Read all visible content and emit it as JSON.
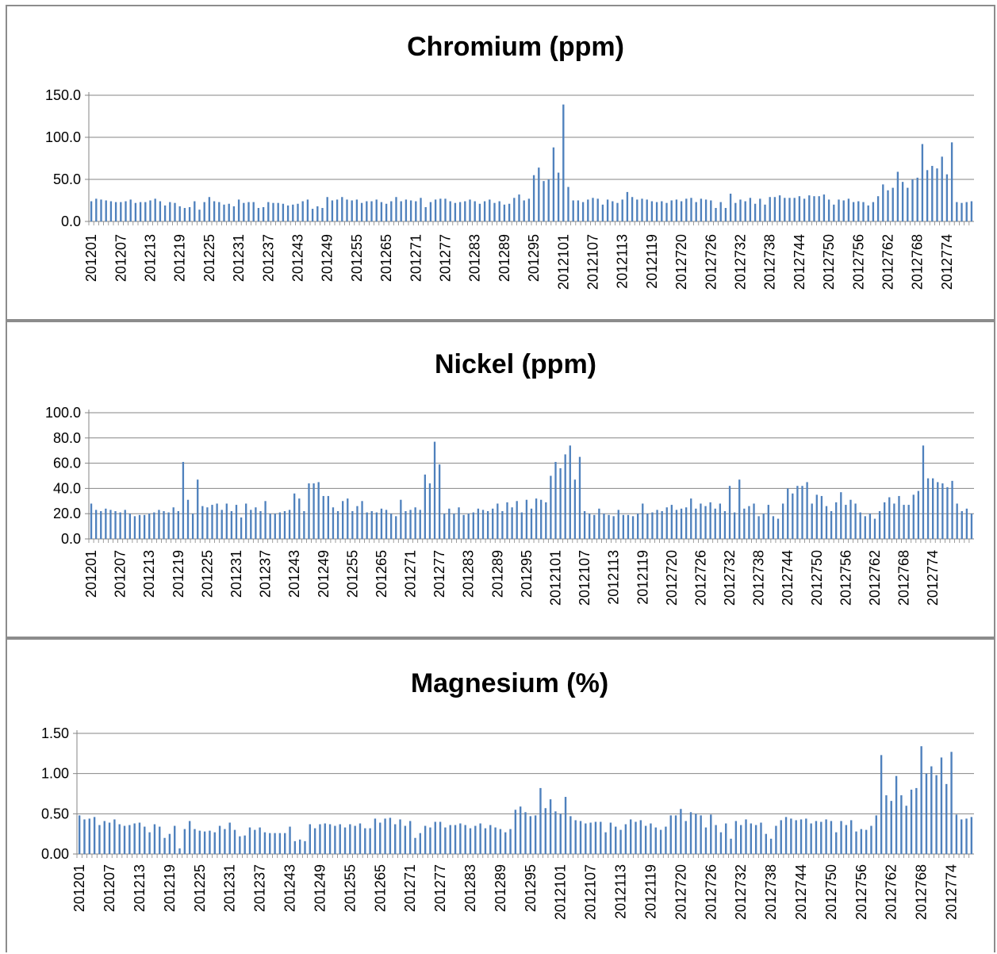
{
  "colors": {
    "bar": "#4f81bd",
    "grid": "#868686",
    "axis": "#868686",
    "border": "#8c8c8c"
  },
  "chart_data": [
    {
      "type": "bar",
      "title": "Chromium (ppm)",
      "ylim": [
        0,
        150
      ],
      "yticks": [
        "0.0",
        "50.0",
        "100.0",
        "150.0"
      ],
      "grid": true,
      "xlabels_shown": [
        "201201",
        "201207",
        "201213",
        "201219",
        "201225",
        "201231",
        "201237",
        "201243",
        "201249",
        "201255",
        "201265",
        "201271",
        "201277",
        "201283",
        "201289",
        "201295",
        "2012101",
        "2012107",
        "2012113",
        "2012119",
        "2012720",
        "2012726",
        "2012732",
        "2012738",
        "2012744",
        "2012750",
        "2012756",
        "2012762",
        "2012768",
        "2012774"
      ],
      "values": [
        24,
        27,
        26,
        25,
        24,
        23,
        23,
        24,
        26,
        22,
        23,
        23,
        25,
        27,
        24,
        19,
        23,
        22,
        18,
        16,
        17,
        24,
        14,
        23,
        29,
        24,
        23,
        20,
        21,
        18,
        26,
        22,
        23,
        23,
        16,
        17,
        23,
        22,
        22,
        21,
        19,
        20,
        21,
        24,
        26,
        15,
        18,
        16,
        29,
        25,
        26,
        29,
        26,
        25,
        26,
        22,
        24,
        24,
        26,
        23,
        21,
        24,
        29,
        24,
        26,
        25,
        24,
        28,
        17,
        23,
        26,
        27,
        27,
        24,
        22,
        23,
        24,
        26,
        24,
        21,
        24,
        26,
        22,
        24,
        20,
        21,
        28,
        32,
        25,
        27,
        55,
        64,
        48,
        50,
        88,
        58,
        139,
        41,
        25,
        25,
        23,
        26,
        28,
        27,
        20,
        26,
        24,
        22,
        26,
        35,
        29,
        26,
        27,
        26,
        24,
        23,
        24,
        22,
        25,
        26,
        24,
        27,
        28,
        23,
        27,
        26,
        25,
        16,
        23,
        16,
        33,
        22,
        26,
        24,
        28,
        21,
        27,
        20,
        29,
        29,
        31,
        28,
        28,
        28,
        30,
        27,
        31,
        30,
        30,
        32,
        26,
        20,
        26,
        25,
        27,
        23,
        24,
        23,
        19,
        23,
        30,
        44,
        37,
        40,
        59,
        47,
        40,
        50,
        52,
        92,
        61,
        66,
        63,
        77,
        56,
        94,
        23,
        22,
        23,
        24
      ]
    },
    {
      "type": "bar",
      "title": "Nickel (ppm)",
      "ylim": [
        0,
        100
      ],
      "yticks": [
        "0.0",
        "20.0",
        "40.0",
        "60.0",
        "80.0",
        "100.0"
      ],
      "grid": true,
      "xlabels_shown": [
        "201201",
        "201207",
        "201213",
        "201219",
        "201225",
        "201231",
        "201237",
        "201243",
        "201249",
        "201255",
        "201265",
        "201271",
        "201277",
        "201283",
        "201289",
        "201295",
        "2012101",
        "2012107",
        "2012113",
        "2012119",
        "2012720",
        "2012726",
        "2012732",
        "2012738",
        "2012744",
        "2012750",
        "2012756",
        "2012762",
        "2012768",
        "2012774"
      ],
      "values": [
        28,
        23,
        22,
        24,
        23,
        22,
        21,
        23,
        20,
        18,
        19,
        19,
        20,
        21,
        23,
        22,
        21,
        25,
        22,
        61,
        31,
        20,
        47,
        26,
        25,
        27,
        28,
        23,
        28,
        22,
        27,
        17,
        28,
        23,
        25,
        22,
        30,
        20,
        20,
        21,
        22,
        23,
        36,
        32,
        22,
        44,
        44,
        45,
        34,
        34,
        25,
        22,
        30,
        32,
        22,
        26,
        30,
        21,
        22,
        21,
        24,
        23,
        20,
        18,
        31,
        22,
        23,
        25,
        23,
        51,
        44,
        77,
        59,
        20,
        24,
        20,
        25,
        19,
        20,
        21,
        24,
        23,
        22,
        24,
        28,
        22,
        29,
        25,
        30,
        21,
        31,
        24,
        32,
        31,
        29,
        50,
        61,
        56,
        67,
        74,
        47,
        65,
        22,
        20,
        19,
        24,
        20,
        19,
        18,
        23,
        19,
        19,
        18,
        20,
        28,
        20,
        21,
        23,
        22,
        25,
        27,
        23,
        24,
        25,
        32,
        24,
        28,
        26,
        29,
        24,
        28,
        22,
        42,
        21,
        47,
        24,
        26,
        28,
        18,
        20,
        27,
        18,
        16,
        28,
        40,
        36,
        42,
        42,
        45,
        28,
        35,
        34,
        26,
        22,
        29,
        37,
        27,
        31,
        28,
        21,
        18,
        20,
        16,
        22,
        29,
        33,
        28,
        34,
        27,
        27,
        35,
        38,
        74,
        48,
        48,
        45,
        44,
        41,
        46,
        28,
        22,
        24,
        20
      ]
    },
    {
      "type": "bar",
      "title": "Magnesium (%)",
      "ylim": [
        0,
        1.5
      ],
      "yticks": [
        "0.00",
        "0.50",
        "1.00",
        "1.50"
      ],
      "grid": true,
      "xlabels_shown": [
        "201201",
        "201207",
        "201213",
        "201219",
        "201225",
        "201231",
        "201237",
        "201243",
        "201249",
        "201255",
        "201265",
        "201271",
        "201277",
        "201283",
        "201289",
        "201295",
        "2012101",
        "2012107",
        "2012113",
        "2012119",
        "2012720",
        "2012726",
        "2012732",
        "2012738",
        "2012744",
        "2012750",
        "2012756",
        "2012762",
        "2012768",
        "2012774"
      ],
      "values": [
        0.48,
        0.43,
        0.44,
        0.46,
        0.36,
        0.41,
        0.39,
        0.43,
        0.37,
        0.35,
        0.36,
        0.38,
        0.39,
        0.34,
        0.27,
        0.37,
        0.34,
        0.2,
        0.25,
        0.35,
        0.07,
        0.31,
        0.41,
        0.31,
        0.29,
        0.28,
        0.29,
        0.27,
        0.35,
        0.31,
        0.39,
        0.3,
        0.22,
        0.23,
        0.33,
        0.3,
        0.33,
        0.27,
        0.26,
        0.26,
        0.26,
        0.26,
        0.34,
        0.16,
        0.18,
        0.16,
        0.37,
        0.32,
        0.37,
        0.38,
        0.37,
        0.35,
        0.37,
        0.33,
        0.37,
        0.35,
        0.38,
        0.32,
        0.32,
        0.44,
        0.39,
        0.44,
        0.45,
        0.37,
        0.43,
        0.35,
        0.41,
        0.2,
        0.26,
        0.35,
        0.33,
        0.4,
        0.4,
        0.33,
        0.36,
        0.36,
        0.38,
        0.36,
        0.32,
        0.35,
        0.38,
        0.32,
        0.36,
        0.33,
        0.31,
        0.27,
        0.31,
        0.55,
        0.59,
        0.52,
        0.47,
        0.48,
        0.82,
        0.57,
        0.68,
        0.53,
        0.5,
        0.71,
        0.47,
        0.42,
        0.41,
        0.38,
        0.39,
        0.4,
        0.4,
        0.27,
        0.39,
        0.34,
        0.3,
        0.37,
        0.43,
        0.4,
        0.42,
        0.35,
        0.38,
        0.33,
        0.3,
        0.34,
        0.48,
        0.48,
        0.56,
        0.41,
        0.52,
        0.5,
        0.48,
        0.33,
        0.49,
        0.36,
        0.27,
        0.38,
        0.19,
        0.41,
        0.36,
        0.43,
        0.38,
        0.36,
        0.39,
        0.25,
        0.19,
        0.35,
        0.42,
        0.46,
        0.44,
        0.42,
        0.43,
        0.44,
        0.38,
        0.41,
        0.4,
        0.43,
        0.41,
        0.27,
        0.41,
        0.36,
        0.42,
        0.28,
        0.31,
        0.3,
        0.35,
        0.48,
        1.23,
        0.73,
        0.66,
        0.97,
        0.73,
        0.6,
        0.8,
        0.82,
        1.34,
        1.0,
        1.09,
        0.98,
        1.2,
        0.87,
        1.27,
        0.49,
        0.43,
        0.44,
        0.46
      ]
    }
  ]
}
